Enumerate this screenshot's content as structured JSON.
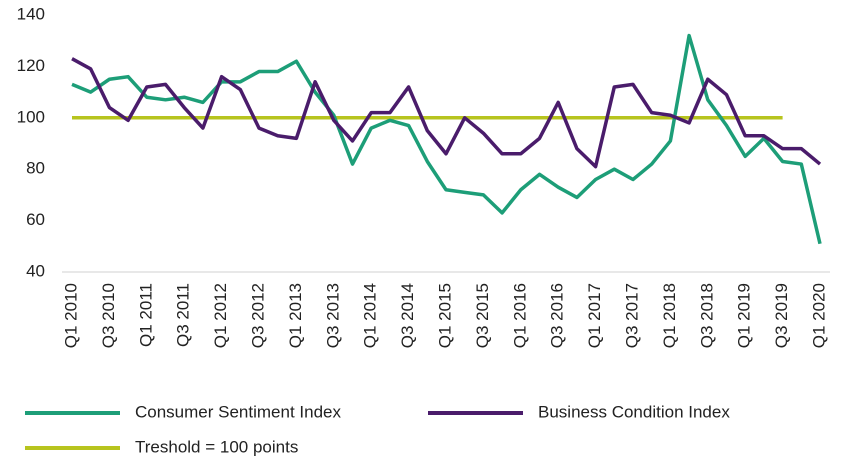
{
  "chart_data": {
    "type": "line",
    "categories": [
      "Q1 2010",
      null,
      "Q3 2010",
      null,
      "Q1 2011",
      null,
      "Q3 2011",
      null,
      "Q1 2012",
      null,
      "Q3 2012",
      null,
      "Q1 2013",
      null,
      "Q3 2013",
      null,
      "Q1 2014",
      null,
      "Q3 2014",
      null,
      "Q1 2015",
      null,
      "Q3 2015",
      null,
      "Q1 2016",
      null,
      "Q3 2016",
      null,
      "Q1 2017",
      null,
      "Q3 2017",
      null,
      "Q1 2018",
      null,
      "Q3 2018",
      null,
      "Q1 2019",
      null,
      "Q3 2019",
      null,
      "Q1 2020"
    ],
    "series": [
      {
        "name": "Consumer Sentiment Index",
        "color": "#1d9e78",
        "values": [
          113,
          110,
          115,
          116,
          108,
          107,
          108,
          106,
          114,
          114,
          118,
          118,
          122,
          110,
          101,
          82,
          96,
          99,
          97,
          83,
          72,
          71,
          70,
          63,
          72,
          78,
          73,
          69,
          76,
          80,
          76,
          82,
          91,
          132,
          107,
          97,
          85,
          92,
          83,
          82,
          51
        ]
      },
      {
        "name": "Business Condition Index",
        "color": "#4a1c6b",
        "values": [
          123,
          119,
          104,
          99,
          112,
          113,
          104,
          96,
          116,
          111,
          96,
          93,
          92,
          114,
          99,
          91,
          102,
          102,
          112,
          95,
          86,
          100,
          94,
          86,
          86,
          92,
          106,
          88,
          81,
          112,
          113,
          102,
          101,
          98,
          115,
          109,
          93,
          93,
          88,
          88,
          82
        ]
      },
      {
        "name": "Treshold = 100 points",
        "color": "#b7c41e",
        "values": [
          100,
          100,
          100,
          100,
          100,
          100,
          100,
          100,
          100,
          100,
          100,
          100,
          100,
          100,
          100,
          100,
          100,
          100,
          100,
          100,
          100,
          100,
          100,
          100,
          100,
          100,
          100,
          100,
          100,
          100,
          100,
          100,
          100,
          100,
          100,
          100,
          100,
          100,
          100,
          null,
          null
        ]
      }
    ],
    "ylim": [
      40,
      140
    ],
    "yticks": [
      40,
      60,
      80,
      100,
      120,
      140
    ]
  }
}
